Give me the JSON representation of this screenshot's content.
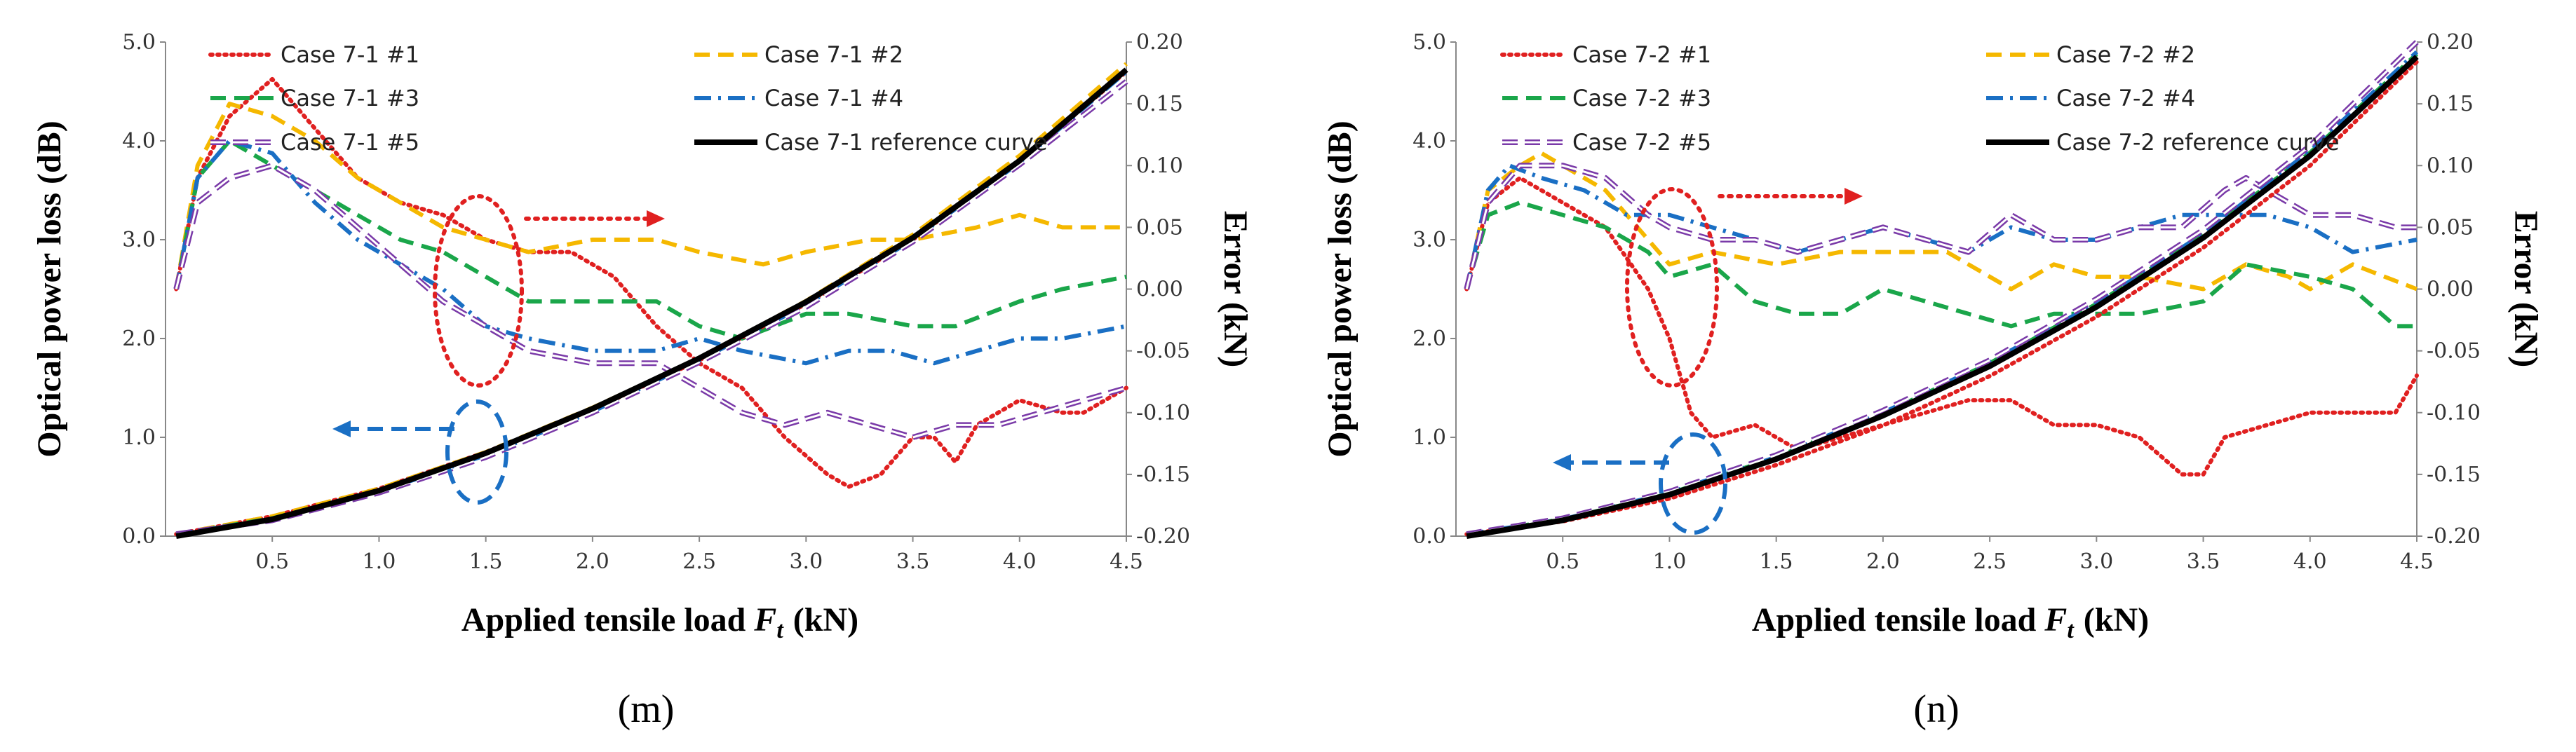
{
  "chart_data": [
    {
      "type": "line",
      "panel_label": "(m)",
      "xlabel_main": "Applied tensile load",
      "xlabel_var": "F",
      "xlabel_sub": "t",
      "xlabel_unit": "(kN)",
      "ylabel": "Optical power loss (dB)",
      "y2label": "Error (kN)",
      "xlim": [
        0,
        4.5
      ],
      "ylim": [
        0,
        5
      ],
      "y2lim": [
        -0.2,
        0.2
      ],
      "x_ticks": [
        "0.5",
        "1.0",
        "1.5",
        "2.0",
        "2.5",
        "3.0",
        "3.5",
        "4.0",
        "4.5"
      ],
      "y_ticks": [
        "0.0",
        "1.0",
        "2.0",
        "3.0",
        "4.0",
        "5.0"
      ],
      "y2_ticks": [
        "-0.20",
        "-0.15",
        "-0.10",
        "-0.05",
        "0.00",
        "0.05",
        "0.10",
        "0.15",
        "0.20"
      ],
      "load_series": [
        {
          "name": "Case 7-1 #1",
          "color": "#e02020",
          "style": "dotted",
          "x": [
            0.05,
            0.5,
            1.0,
            1.5,
            2.0,
            2.5,
            3.0,
            3.5,
            4.0,
            4.5
          ],
          "y": [
            0.02,
            0.2,
            0.48,
            0.85,
            1.28,
            1.78,
            2.35,
            3.0,
            3.8,
            4.7
          ]
        },
        {
          "name": "Case 7-1 #2",
          "color": "#f5b800",
          "style": "dashed",
          "x": [
            0.05,
            0.5,
            1.0,
            1.5,
            2.0,
            2.5,
            3.0,
            3.5,
            4.0,
            4.5
          ],
          "y": [
            0.02,
            0.2,
            0.48,
            0.85,
            1.3,
            1.8,
            2.38,
            3.05,
            3.85,
            4.78
          ]
        },
        {
          "name": "Case 7-1 #3",
          "color": "#1aa64a",
          "style": "dashed",
          "x": [
            0.05,
            0.5,
            1.0,
            1.5,
            2.0,
            2.5,
            3.0,
            3.5,
            4.0,
            4.5
          ],
          "y": [
            0.02,
            0.18,
            0.46,
            0.84,
            1.28,
            1.8,
            2.36,
            3.02,
            3.8,
            4.72
          ]
        },
        {
          "name": "Case 7-1 #4",
          "color": "#1a6fc4",
          "style": "dashdot",
          "x": [
            0.05,
            0.5,
            1.0,
            1.5,
            2.0,
            2.5,
            3.0,
            3.5,
            4.0,
            4.5
          ],
          "y": [
            0.02,
            0.17,
            0.45,
            0.82,
            1.26,
            1.78,
            2.34,
            3.0,
            3.78,
            4.7
          ]
        },
        {
          "name": "Case 7-1 #5",
          "color": "#7a3aa8",
          "style": "double",
          "x": [
            0.05,
            0.5,
            1.0,
            1.5,
            2.0,
            2.5,
            3.0,
            3.5,
            4.0,
            4.5
          ],
          "y": [
            0.02,
            0.16,
            0.44,
            0.8,
            1.25,
            1.76,
            2.32,
            2.98,
            3.76,
            4.6
          ]
        },
        {
          "name": "Case 7-1 reference curve",
          "color": "#000000",
          "style": "solid",
          "x": [
            0.05,
            0.5,
            1.0,
            1.5,
            2.0,
            2.5,
            3.0,
            3.5,
            4.0,
            4.5
          ],
          "y": [
            0.0,
            0.17,
            0.46,
            0.84,
            1.29,
            1.8,
            2.37,
            3.02,
            3.8,
            4.72
          ]
        }
      ],
      "error_series": [
        {
          "name": "Case 7-1 #1",
          "color": "#e02020",
          "style": "dotted",
          "x": [
            0.05,
            0.15,
            0.3,
            0.5,
            0.7,
            0.9,
            1.1,
            1.3,
            1.5,
            1.7,
            1.9,
            2.1,
            2.3,
            2.5,
            2.7,
            2.9,
            3.1,
            3.2,
            3.35,
            3.5,
            3.6,
            3.7,
            3.8,
            4.0,
            4.2,
            4.3,
            4.4,
            4.5
          ],
          "y": [
            0.0,
            0.09,
            0.14,
            0.17,
            0.13,
            0.09,
            0.07,
            0.06,
            0.04,
            0.03,
            0.03,
            0.01,
            -0.03,
            -0.06,
            -0.08,
            -0.12,
            -0.15,
            -0.16,
            -0.15,
            -0.12,
            -0.12,
            -0.14,
            -0.11,
            -0.09,
            -0.1,
            -0.1,
            -0.09,
            -0.08
          ]
        },
        {
          "name": "Case 7-1 #2",
          "color": "#f5b800",
          "style": "dashed",
          "x": [
            0.05,
            0.15,
            0.3,
            0.5,
            0.7,
            0.9,
            1.1,
            1.3,
            1.5,
            1.7,
            2.0,
            2.3,
            2.5,
            2.8,
            3.0,
            3.3,
            3.5,
            3.8,
            4.0,
            4.2,
            4.5
          ],
          "y": [
            0.0,
            0.1,
            0.15,
            0.14,
            0.12,
            0.09,
            0.07,
            0.05,
            0.04,
            0.03,
            0.04,
            0.04,
            0.03,
            0.02,
            0.03,
            0.04,
            0.04,
            0.05,
            0.06,
            0.05,
            0.05
          ]
        },
        {
          "name": "Case 7-1 #3",
          "color": "#1aa64a",
          "style": "dashed",
          "x": [
            0.05,
            0.15,
            0.3,
            0.5,
            0.7,
            0.9,
            1.1,
            1.3,
            1.5,
            1.7,
            2.0,
            2.3,
            2.5,
            2.7,
            3.0,
            3.2,
            3.5,
            3.7,
            4.0,
            4.2,
            4.5
          ],
          "y": [
            0.0,
            0.09,
            0.12,
            0.1,
            0.08,
            0.06,
            0.04,
            0.03,
            0.01,
            -0.01,
            -0.01,
            -0.01,
            -0.03,
            -0.04,
            -0.02,
            -0.02,
            -0.03,
            -0.03,
            -0.01,
            0.0,
            0.01
          ]
        },
        {
          "name": "Case 7-1 #4",
          "color": "#1a6fc4",
          "style": "dashdot",
          "x": [
            0.05,
            0.15,
            0.3,
            0.5,
            0.7,
            0.9,
            1.1,
            1.3,
            1.5,
            1.7,
            2.0,
            2.3,
            2.5,
            2.7,
            3.0,
            3.2,
            3.4,
            3.6,
            3.8,
            4.0,
            4.2,
            4.5
          ],
          "y": [
            0.0,
            0.09,
            0.12,
            0.11,
            0.07,
            0.04,
            0.02,
            0.0,
            -0.03,
            -0.04,
            -0.05,
            -0.05,
            -0.04,
            -0.05,
            -0.06,
            -0.05,
            -0.05,
            -0.06,
            -0.05,
            -0.04,
            -0.04,
            -0.03
          ]
        },
        {
          "name": "Case 7-1 #5",
          "color": "#7a3aa8",
          "style": "double",
          "x": [
            0.05,
            0.15,
            0.3,
            0.5,
            0.7,
            0.9,
            1.1,
            1.3,
            1.5,
            1.7,
            2.0,
            2.3,
            2.5,
            2.7,
            2.9,
            3.1,
            3.3,
            3.5,
            3.7,
            3.9,
            4.1,
            4.3,
            4.5
          ],
          "y": [
            0.0,
            0.07,
            0.09,
            0.1,
            0.08,
            0.05,
            0.02,
            -0.01,
            -0.03,
            -0.05,
            -0.06,
            -0.06,
            -0.08,
            -0.1,
            -0.11,
            -0.1,
            -0.11,
            -0.12,
            -0.11,
            -0.11,
            -0.1,
            -0.09,
            -0.08
          ]
        }
      ]
    },
    {
      "type": "line",
      "panel_label": "(n)",
      "xlabel_main": "Applied tensile load",
      "xlabel_var": "F",
      "xlabel_sub": "t",
      "xlabel_unit": "(kN)",
      "ylabel": "Optical power loss (dB)",
      "y2label": "Error (kN)",
      "xlim": [
        0,
        4.5
      ],
      "ylim": [
        0,
        5
      ],
      "y2lim": [
        -0.2,
        0.2
      ],
      "x_ticks": [
        "0.5",
        "1.0",
        "1.5",
        "2.0",
        "2.5",
        "3.0",
        "3.5",
        "4.0",
        "4.5"
      ],
      "y_ticks": [
        "0.0",
        "1.0",
        "2.0",
        "3.0",
        "4.0",
        "5.0"
      ],
      "y2_ticks": [
        "-0.20",
        "-0.15",
        "-0.10",
        "-0.05",
        "0.00",
        "0.05",
        "0.10",
        "0.15",
        "0.20"
      ],
      "load_series": [
        {
          "name": "Case 7-2 #1",
          "color": "#e02020",
          "style": "dotted",
          "x": [
            0.05,
            0.5,
            1.0,
            1.5,
            2.0,
            2.5,
            3.0,
            3.5,
            4.0,
            4.5
          ],
          "y": [
            0.02,
            0.15,
            0.38,
            0.72,
            1.12,
            1.62,
            2.22,
            2.92,
            3.75,
            4.8
          ]
        },
        {
          "name": "Case 7-2 #2",
          "color": "#f5b800",
          "style": "dashed",
          "x": [
            0.05,
            0.5,
            1.0,
            1.5,
            2.0,
            2.5,
            3.0,
            3.5,
            4.0,
            4.5
          ],
          "y": [
            0.02,
            0.16,
            0.42,
            0.78,
            1.22,
            1.72,
            2.32,
            3.02,
            3.85,
            4.85
          ]
        },
        {
          "name": "Case 7-2 #3",
          "color": "#1aa64a",
          "style": "dashed",
          "x": [
            0.05,
            0.5,
            1.0,
            1.5,
            2.0,
            2.5,
            3.0,
            3.5,
            4.0,
            4.5
          ],
          "y": [
            0.02,
            0.17,
            0.43,
            0.8,
            1.24,
            1.75,
            2.35,
            3.05,
            3.88,
            4.88
          ]
        },
        {
          "name": "Case 7-2 #4",
          "color": "#1a6fc4",
          "style": "dashdot",
          "x": [
            0.05,
            0.5,
            1.0,
            1.5,
            2.0,
            2.5,
            3.0,
            3.5,
            4.0,
            4.5
          ],
          "y": [
            0.02,
            0.17,
            0.44,
            0.8,
            1.25,
            1.76,
            2.36,
            3.06,
            3.9,
            4.9
          ]
        },
        {
          "name": "Case 7-2 #5",
          "color": "#7a3aa8",
          "style": "double",
          "x": [
            0.05,
            0.5,
            1.0,
            1.5,
            2.0,
            2.5,
            3.0,
            3.5,
            4.0,
            4.5
          ],
          "y": [
            0.02,
            0.18,
            0.45,
            0.82,
            1.27,
            1.78,
            2.4,
            3.1,
            3.95,
            5.0
          ]
        },
        {
          "name": "Case 7-2 reference curve",
          "color": "#000000",
          "style": "solid",
          "x": [
            0.05,
            0.5,
            1.0,
            1.5,
            2.0,
            2.5,
            3.0,
            3.5,
            4.0,
            4.5
          ],
          "y": [
            0.0,
            0.16,
            0.42,
            0.78,
            1.22,
            1.72,
            2.32,
            3.02,
            3.85,
            4.85
          ]
        }
      ],
      "error_series": [
        {
          "name": "Case 7-2 #1",
          "color": "#e02020",
          "style": "dotted",
          "x": [
            0.05,
            0.15,
            0.3,
            0.5,
            0.7,
            0.9,
            1.0,
            1.05,
            1.1,
            1.2,
            1.4,
            1.6,
            1.8,
            2.0,
            2.2,
            2.4,
            2.6,
            2.8,
            3.0,
            3.2,
            3.4,
            3.5,
            3.6,
            3.8,
            4.0,
            4.2,
            4.4,
            4.5
          ],
          "y": [
            0.0,
            0.07,
            0.09,
            0.07,
            0.05,
            0.0,
            -0.04,
            -0.07,
            -0.1,
            -0.12,
            -0.11,
            -0.13,
            -0.12,
            -0.11,
            -0.1,
            -0.09,
            -0.09,
            -0.11,
            -0.11,
            -0.12,
            -0.15,
            -0.15,
            -0.12,
            -0.11,
            -0.1,
            -0.1,
            -0.1,
            -0.07
          ]
        },
        {
          "name": "Case 7-2 #2",
          "color": "#f5b800",
          "style": "dashed",
          "x": [
            0.05,
            0.15,
            0.3,
            0.4,
            0.5,
            0.7,
            0.9,
            1.0,
            1.2,
            1.5,
            1.8,
            2.0,
            2.3,
            2.6,
            2.8,
            3.0,
            3.2,
            3.5,
            3.7,
            3.9,
            4.0,
            4.2,
            4.5
          ],
          "y": [
            0.0,
            0.08,
            0.1,
            0.11,
            0.1,
            0.08,
            0.04,
            0.02,
            0.03,
            0.02,
            0.03,
            0.03,
            0.03,
            0.0,
            0.02,
            0.01,
            0.01,
            0.0,
            0.02,
            0.01,
            0.0,
            0.02,
            0.0
          ]
        },
        {
          "name": "Case 7-2 #3",
          "color": "#1aa64a",
          "style": "dashed",
          "x": [
            0.05,
            0.15,
            0.3,
            0.5,
            0.7,
            0.9,
            1.0,
            1.2,
            1.4,
            1.6,
            1.8,
            2.0,
            2.2,
            2.4,
            2.6,
            2.8,
            3.0,
            3.2,
            3.5,
            3.7,
            4.0,
            4.2,
            4.4,
            4.5
          ],
          "y": [
            0.0,
            0.06,
            0.07,
            0.06,
            0.05,
            0.03,
            0.01,
            0.02,
            -0.01,
            -0.02,
            -0.02,
            0.0,
            -0.01,
            -0.02,
            -0.03,
            -0.02,
            -0.02,
            -0.02,
            -0.01,
            0.02,
            0.01,
            0.0,
            -0.03,
            -0.03
          ]
        },
        {
          "name": "Case 7-2 #4",
          "color": "#1a6fc4",
          "style": "dashdot",
          "x": [
            0.05,
            0.15,
            0.25,
            0.4,
            0.6,
            0.8,
            1.0,
            1.2,
            1.4,
            1.6,
            1.8,
            2.0,
            2.2,
            2.4,
            2.6,
            2.8,
            3.0,
            3.2,
            3.4,
            3.6,
            3.8,
            4.0,
            4.2,
            4.5
          ],
          "y": [
            0.0,
            0.08,
            0.1,
            0.09,
            0.08,
            0.06,
            0.06,
            0.05,
            0.04,
            0.03,
            0.04,
            0.05,
            0.04,
            0.03,
            0.05,
            0.04,
            0.04,
            0.05,
            0.06,
            0.06,
            0.06,
            0.05,
            0.03,
            0.04
          ]
        },
        {
          "name": "Case 7-2 #5",
          "color": "#7a3aa8",
          "style": "double",
          "x": [
            0.05,
            0.15,
            0.3,
            0.5,
            0.7,
            0.9,
            1.0,
            1.2,
            1.4,
            1.6,
            1.8,
            2.0,
            2.2,
            2.4,
            2.6,
            2.8,
            3.0,
            3.2,
            3.4,
            3.6,
            3.7,
            3.8,
            4.0,
            4.2,
            4.4,
            4.5
          ],
          "y": [
            0.0,
            0.07,
            0.1,
            0.1,
            0.09,
            0.06,
            0.05,
            0.04,
            0.04,
            0.03,
            0.04,
            0.05,
            0.04,
            0.03,
            0.06,
            0.04,
            0.04,
            0.05,
            0.05,
            0.08,
            0.09,
            0.08,
            0.06,
            0.06,
            0.05,
            0.05
          ]
        }
      ]
    }
  ]
}
